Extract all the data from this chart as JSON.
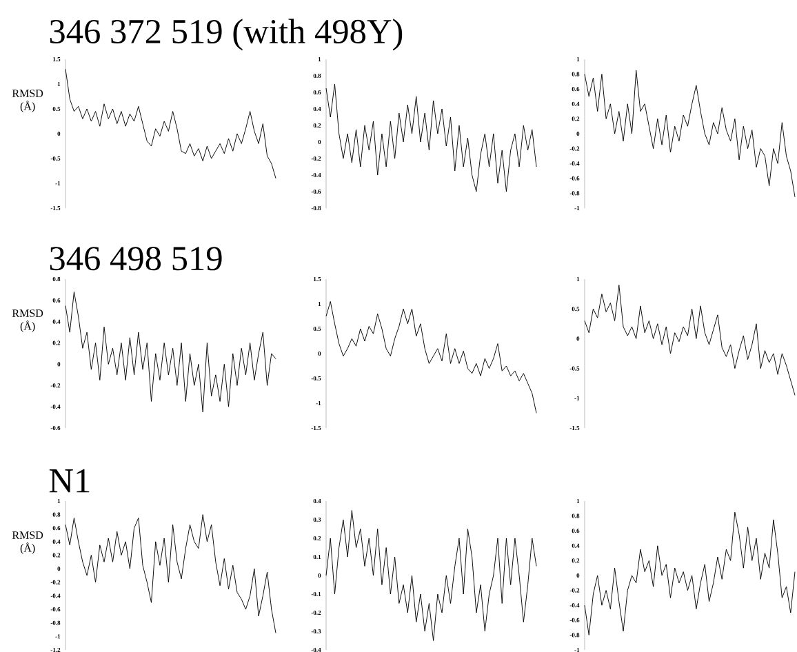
{
  "chart_data": [
    {
      "type": "line",
      "title": "346 372 519 (with 498Y)",
      "ylabel": "RMSD (Å)",
      "tick_labels": "y",
      "ylim": [
        -1.5,
        1.5
      ],
      "yticks": [
        -1.5,
        -1,
        -0.5,
        0,
        0.5,
        1,
        1.5
      ],
      "categories": [
        null,
        null,
        null,
        null,
        null,
        null,
        null,
        null,
        null,
        null,
        null,
        null,
        null,
        null,
        null,
        null,
        null,
        null,
        null,
        null,
        null,
        null,
        null,
        null,
        null,
        null,
        null,
        null,
        null,
        null,
        null,
        null,
        null,
        null,
        null,
        null,
        null,
        null,
        null,
        null,
        null,
        null,
        null,
        null,
        null,
        null,
        null,
        null,
        null,
        null
      ],
      "series": [
        {
          "color": "#000000",
          "values": [
            1.3,
            0.7,
            0.45,
            0.55,
            0.3,
            0.5,
            0.25,
            0.45,
            0.15,
            0.6,
            0.3,
            0.5,
            0.2,
            0.45,
            0.15,
            0.4,
            0.25,
            0.55,
            0.2,
            -0.15,
            -0.25,
            0.1,
            -0.05,
            0.25,
            0.05,
            0.45,
            0.1,
            -0.35,
            -0.4,
            -0.2,
            -0.45,
            -0.3,
            -0.55,
            -0.25,
            -0.5,
            -0.35,
            -0.2,
            -0.4,
            -0.1,
            -0.35,
            0.0,
            -0.2,
            0.1,
            0.45,
            0.05,
            -0.2,
            0.2,
            -0.45,
            -0.6,
            -0.9
          ]
        }
      ]
    },
    {
      "type": "line",
      "tick_labels": "y",
      "ylim": [
        -0.8,
        1
      ],
      "yticks": [
        -0.8,
        -0.6,
        -0.4,
        -0.2,
        0,
        0.2,
        0.4,
        0.6,
        0.8,
        1
      ],
      "categories": [
        null,
        null,
        null,
        null,
        null,
        null,
        null,
        null,
        null,
        null,
        null,
        null,
        null,
        null,
        null,
        null,
        null,
        null,
        null,
        null,
        null,
        null,
        null,
        null,
        null,
        null,
        null,
        null,
        null,
        null,
        null,
        null,
        null,
        null,
        null,
        null,
        null,
        null,
        null,
        null,
        null,
        null,
        null,
        null,
        null,
        null,
        null,
        null,
        null,
        null
      ],
      "series": [
        {
          "color": "#000000",
          "values": [
            0.65,
            0.3,
            0.7,
            0.1,
            -0.2,
            0.1,
            -0.25,
            0.15,
            -0.3,
            0.2,
            -0.1,
            0.25,
            -0.4,
            0.1,
            -0.3,
            0.25,
            -0.2,
            0.35,
            0.0,
            0.45,
            0.1,
            0.55,
            0.0,
            0.35,
            -0.1,
            0.5,
            0.1,
            0.4,
            -0.05,
            0.3,
            -0.35,
            0.2,
            -0.3,
            0.05,
            -0.4,
            -0.6,
            -0.15,
            0.1,
            -0.3,
            0.1,
            -0.5,
            -0.1,
            -0.6,
            -0.1,
            0.1,
            -0.3,
            0.2,
            -0.1,
            0.15,
            -0.3
          ]
        }
      ]
    },
    {
      "type": "line",
      "tick_labels": "y",
      "ylim": [
        -1,
        1
      ],
      "yticks": [
        -1,
        -0.8,
        -0.6,
        -0.4,
        -0.2,
        0,
        0.2,
        0.4,
        0.6,
        0.8,
        1
      ],
      "categories": [
        null,
        null,
        null,
        null,
        null,
        null,
        null,
        null,
        null,
        null,
        null,
        null,
        null,
        null,
        null,
        null,
        null,
        null,
        null,
        null,
        null,
        null,
        null,
        null,
        null,
        null,
        null,
        null,
        null,
        null,
        null,
        null,
        null,
        null,
        null,
        null,
        null,
        null,
        null,
        null,
        null,
        null,
        null,
        null,
        null,
        null,
        null,
        null,
        null,
        null
      ],
      "series": [
        {
          "color": "#000000",
          "values": [
            0.8,
            0.5,
            0.75,
            0.3,
            0.8,
            0.2,
            0.4,
            0.0,
            0.3,
            -0.1,
            0.4,
            0.0,
            0.85,
            0.3,
            0.4,
            0.1,
            -0.2,
            0.2,
            -0.15,
            0.25,
            -0.25,
            0.1,
            -0.1,
            0.25,
            0.1,
            0.4,
            0.65,
            0.3,
            0.0,
            -0.15,
            0.15,
            0.0,
            0.35,
            0.05,
            -0.1,
            0.2,
            -0.35,
            0.1,
            -0.2,
            0.05,
            -0.45,
            -0.2,
            -0.3,
            -0.7,
            -0.2,
            -0.4,
            0.15,
            -0.3,
            -0.5,
            -0.85
          ]
        }
      ]
    },
    {
      "type": "line",
      "title": "346 498 519",
      "ylabel": "RMSD (Å)",
      "tick_labels": "y",
      "ylim": [
        -0.6,
        0.8
      ],
      "yticks": [
        -0.6,
        -0.4,
        -0.2,
        0,
        0.2,
        0.4,
        0.6,
        0.8
      ],
      "categories": [
        null,
        null,
        null,
        null,
        null,
        null,
        null,
        null,
        null,
        null,
        null,
        null,
        null,
        null,
        null,
        null,
        null,
        null,
        null,
        null,
        null,
        null,
        null,
        null,
        null,
        null,
        null,
        null,
        null,
        null,
        null,
        null,
        null,
        null,
        null,
        null,
        null,
        null,
        null,
        null,
        null,
        null,
        null,
        null,
        null,
        null,
        null,
        null,
        null,
        null
      ],
      "series": [
        {
          "color": "#000000",
          "values": [
            0.55,
            0.3,
            0.68,
            0.45,
            0.15,
            0.3,
            -0.05,
            0.2,
            -0.15,
            0.35,
            0.0,
            0.15,
            -0.1,
            0.2,
            -0.15,
            0.25,
            -0.1,
            0.3,
            -0.05,
            0.2,
            -0.35,
            0.1,
            -0.15,
            0.2,
            -0.1,
            0.15,
            -0.2,
            0.2,
            -0.35,
            0.1,
            -0.2,
            0.0,
            -0.45,
            0.2,
            -0.3,
            -0.1,
            -0.35,
            0.0,
            -0.4,
            0.1,
            -0.2,
            0.15,
            -0.1,
            0.2,
            -0.15,
            0.1,
            0.3,
            -0.2,
            0.1,
            0.05
          ]
        }
      ]
    },
    {
      "type": "line",
      "tick_labels": "y",
      "ylim": [
        -1.5,
        1.5
      ],
      "yticks": [
        -1.5,
        -1,
        -0.5,
        0,
        0.5,
        1,
        1.5
      ],
      "categories": [
        null,
        null,
        null,
        null,
        null,
        null,
        null,
        null,
        null,
        null,
        null,
        null,
        null,
        null,
        null,
        null,
        null,
        null,
        null,
        null,
        null,
        null,
        null,
        null,
        null,
        null,
        null,
        null,
        null,
        null,
        null,
        null,
        null,
        null,
        null,
        null,
        null,
        null,
        null,
        null,
        null,
        null,
        null,
        null,
        null,
        null,
        null,
        null,
        null,
        null
      ],
      "series": [
        {
          "color": "#000000",
          "values": [
            0.75,
            1.05,
            0.6,
            0.2,
            -0.05,
            0.1,
            0.3,
            0.15,
            0.5,
            0.25,
            0.55,
            0.4,
            0.8,
            0.5,
            0.1,
            -0.05,
            0.3,
            0.55,
            0.9,
            0.6,
            0.9,
            0.35,
            0.6,
            0.1,
            -0.2,
            -0.05,
            0.1,
            -0.15,
            0.4,
            -0.2,
            0.1,
            -0.2,
            0.05,
            -0.3,
            -0.4,
            -0.2,
            -0.45,
            -0.1,
            -0.3,
            -0.1,
            0.2,
            -0.35,
            -0.25,
            -0.45,
            -0.35,
            -0.55,
            -0.4,
            -0.6,
            -0.8,
            -1.2
          ]
        }
      ]
    },
    {
      "type": "line",
      "tick_labels": "y",
      "ylim": [
        -1.5,
        1
      ],
      "yticks": [
        -1.5,
        -1,
        -0.5,
        0,
        0.5,
        1
      ],
      "categories": [
        null,
        null,
        null,
        null,
        null,
        null,
        null,
        null,
        null,
        null,
        null,
        null,
        null,
        null,
        null,
        null,
        null,
        null,
        null,
        null,
        null,
        null,
        null,
        null,
        null,
        null,
        null,
        null,
        null,
        null,
        null,
        null,
        null,
        null,
        null,
        null,
        null,
        null,
        null,
        null,
        null,
        null,
        null,
        null,
        null,
        null,
        null,
        null,
        null,
        null
      ],
      "series": [
        {
          "color": "#000000",
          "values": [
            0.3,
            0.1,
            0.5,
            0.35,
            0.75,
            0.45,
            0.6,
            0.3,
            0.9,
            0.2,
            0.05,
            0.2,
            0.0,
            0.55,
            0.1,
            0.3,
            0.0,
            0.25,
            -0.1,
            0.2,
            -0.25,
            0.1,
            -0.05,
            0.2,
            0.05,
            0.5,
            0.0,
            0.55,
            0.1,
            -0.1,
            0.15,
            0.4,
            -0.15,
            -0.3,
            -0.1,
            -0.5,
            -0.2,
            0.05,
            -0.35,
            -0.1,
            0.25,
            -0.5,
            -0.2,
            -0.4,
            -0.25,
            -0.6,
            -0.25,
            -0.45,
            -0.7,
            -0.95
          ]
        }
      ]
    },
    {
      "type": "line",
      "title": "N1",
      "ylabel": "RMSD (Å)",
      "tick_labels": "y",
      "ylim": [
        -1.2,
        1
      ],
      "yticks": [
        -1.2,
        -1,
        -0.8,
        -0.6,
        -0.4,
        -0.2,
        0,
        0.2,
        0.4,
        0.6,
        0.8,
        1
      ],
      "categories": [
        null,
        null,
        null,
        null,
        null,
        null,
        null,
        null,
        null,
        null,
        null,
        null,
        null,
        null,
        null,
        null,
        null,
        null,
        null,
        null,
        null,
        null,
        null,
        null,
        null,
        null,
        null,
        null,
        null,
        null,
        null,
        null,
        null,
        null,
        null,
        null,
        null,
        null,
        null,
        null,
        null,
        null,
        null,
        null,
        null,
        null,
        null,
        null,
        null,
        null
      ],
      "series": [
        {
          "color": "#000000",
          "values": [
            0.65,
            0.35,
            0.75,
            0.4,
            0.1,
            -0.1,
            0.2,
            -0.2,
            0.35,
            0.1,
            0.45,
            0.1,
            0.55,
            0.2,
            0.4,
            0.0,
            0.6,
            0.75,
            0.05,
            -0.2,
            -0.5,
            0.4,
            0.05,
            0.45,
            -0.2,
            0.65,
            0.1,
            -0.15,
            0.3,
            0.65,
            0.4,
            0.3,
            0.8,
            0.4,
            0.65,
            0.1,
            -0.25,
            0.15,
            -0.3,
            0.05,
            -0.35,
            -0.45,
            -0.6,
            -0.4,
            0.0,
            -0.7,
            -0.4,
            -0.05,
            -0.6,
            -0.95
          ]
        }
      ]
    },
    {
      "type": "line",
      "tick_labels": "y",
      "ylim": [
        -0.4,
        0.4
      ],
      "yticks": [
        -0.4,
        -0.3,
        -0.2,
        -0.1,
        0,
        0.1,
        0.2,
        0.3,
        0.4
      ],
      "categories": [
        null,
        null,
        null,
        null,
        null,
        null,
        null,
        null,
        null,
        null,
        null,
        null,
        null,
        null,
        null,
        null,
        null,
        null,
        null,
        null,
        null,
        null,
        null,
        null,
        null,
        null,
        null,
        null,
        null,
        null,
        null,
        null,
        null,
        null,
        null,
        null,
        null,
        null,
        null,
        null,
        null,
        null,
        null,
        null,
        null,
        null,
        null,
        null,
        null,
        null
      ],
      "series": [
        {
          "color": "#000000",
          "values": [
            0.0,
            0.2,
            -0.1,
            0.15,
            0.3,
            0.1,
            0.35,
            0.15,
            0.25,
            0.05,
            0.2,
            0.0,
            0.25,
            -0.05,
            0.15,
            -0.1,
            0.1,
            -0.15,
            -0.05,
            -0.2,
            0.0,
            -0.25,
            -0.1,
            -0.3,
            -0.15,
            -0.35,
            -0.1,
            -0.2,
            0.0,
            -0.15,
            0.05,
            0.2,
            -0.1,
            0.25,
            0.1,
            -0.2,
            -0.05,
            -0.3,
            -0.1,
            0.0,
            0.2,
            -0.15,
            0.2,
            -0.05,
            0.2,
            0.0,
            -0.25,
            -0.05,
            0.2,
            0.05
          ]
        }
      ]
    },
    {
      "type": "line",
      "tick_labels": "y",
      "ylim": [
        -1,
        1
      ],
      "yticks": [
        -1,
        -0.8,
        -0.6,
        -0.4,
        -0.2,
        0,
        0.2,
        0.4,
        0.6,
        0.8,
        1
      ],
      "categories": [
        null,
        null,
        null,
        null,
        null,
        null,
        null,
        null,
        null,
        null,
        null,
        null,
        null,
        null,
        null,
        null,
        null,
        null,
        null,
        null,
        null,
        null,
        null,
        null,
        null,
        null,
        null,
        null,
        null,
        null,
        null,
        null,
        null,
        null,
        null,
        null,
        null,
        null,
        null,
        null,
        null,
        null,
        null,
        null,
        null,
        null,
        null,
        null,
        null,
        null
      ],
      "series": [
        {
          "color": "#000000",
          "values": [
            -0.4,
            -0.8,
            -0.25,
            0.0,
            -0.4,
            -0.2,
            -0.45,
            0.1,
            -0.35,
            -0.75,
            -0.2,
            0.0,
            -0.1,
            0.35,
            0.05,
            0.2,
            -0.15,
            0.4,
            0.0,
            0.15,
            -0.3,
            0.1,
            -0.1,
            0.05,
            -0.2,
            0.0,
            -0.45,
            -0.1,
            0.15,
            -0.35,
            -0.1,
            0.25,
            -0.05,
            0.35,
            0.2,
            0.85,
            0.55,
            0.1,
            0.65,
            0.2,
            0.5,
            -0.05,
            0.3,
            0.1,
            0.75,
            0.3,
            -0.3,
            -0.15,
            -0.5,
            0.05
          ]
        }
      ]
    }
  ]
}
